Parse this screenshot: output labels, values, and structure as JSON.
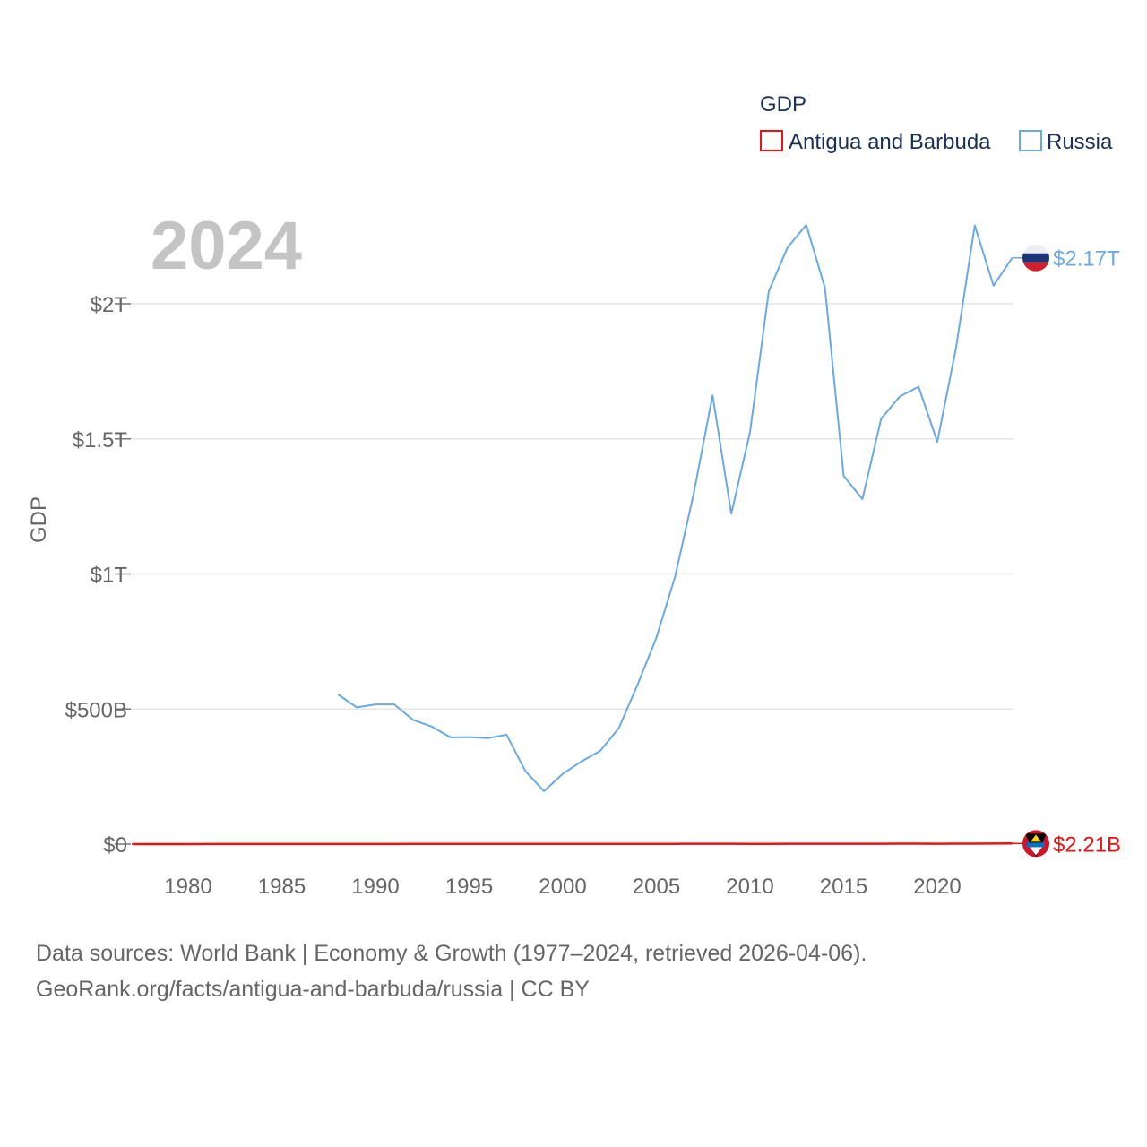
{
  "chart_data": {
    "type": "line",
    "title": "",
    "current_year": "2024",
    "ylabel": "GDP",
    "xlabel": "",
    "legend_title": "GDP",
    "xlim": [
      1977,
      2024
    ],
    "ylim": [
      0,
      2300000000000
    ],
    "x_ticks": [
      1980,
      1985,
      1990,
      1995,
      2000,
      2005,
      2010,
      2015,
      2020
    ],
    "x_tick_labels": [
      "1980",
      "1985",
      "1990",
      "1995",
      "2000",
      "2005",
      "2010",
      "2015",
      "2020"
    ],
    "y_ticks": [
      0,
      500000000000,
      1000000000000,
      1500000000000,
      2000000000000
    ],
    "y_tick_labels": [
      "$0",
      "$500B",
      "$1T",
      "$1.5T",
      "$2T"
    ],
    "series": [
      {
        "name": "Antigua and Barbuda",
        "color": "#ee1111",
        "end_label": "$2.21B",
        "flag": "antigua-and-barbuda-flag-icon",
        "x": [
          1977,
          1978,
          1979,
          1980,
          1981,
          1982,
          1983,
          1984,
          1985,
          1986,
          1987,
          1988,
          1989,
          1990,
          1991,
          1992,
          1993,
          1994,
          1995,
          1996,
          1997,
          1998,
          1999,
          2000,
          2001,
          2002,
          2003,
          2004,
          2005,
          2006,
          2007,
          2008,
          2009,
          2010,
          2011,
          2012,
          2013,
          2014,
          2015,
          2016,
          2017,
          2018,
          2019,
          2020,
          2021,
          2022,
          2023,
          2024
        ],
        "values": [
          100000000.0,
          120000000.0,
          140000000.0,
          160000000.0,
          180000000.0,
          200000000.0,
          220000000.0,
          250000000.0,
          280000000.0,
          320000000.0,
          360000000.0,
          400000000.0,
          440000000.0,
          460000000.0,
          480000000.0,
          500000000.0,
          520000000.0,
          560000000.0,
          580000000.0,
          600000000.0,
          640000000.0,
          680000000.0,
          720000000.0,
          830000000.0,
          800000000.0,
          810000000.0,
          850000000.0,
          910000000.0,
          1000000000.0,
          1130000000.0,
          1290000000.0,
          1350000000.0,
          1220000000.0,
          1150000000.0,
          1140000000.0,
          1200000000.0,
          1200000000.0,
          1250000000.0,
          1340000000.0,
          1440000000.0,
          1470000000.0,
          1600000000.0,
          1690000000.0,
          1410000000.0,
          1560000000.0,
          1760000000.0,
          2030000000.0,
          2210000000.0
        ]
      },
      {
        "name": "Russia",
        "color": "#6aaae4",
        "end_label": "$2.17T",
        "flag": "russia-flag-icon",
        "x": [
          1988,
          1989,
          1990,
          1991,
          1992,
          1993,
          1994,
          1995,
          1996,
          1997,
          1998,
          1999,
          2000,
          2001,
          2002,
          2003,
          2004,
          2005,
          2006,
          2007,
          2008,
          2009,
          2010,
          2011,
          2012,
          2013,
          2014,
          2015,
          2016,
          2017,
          2018,
          2019,
          2020,
          2021,
          2022,
          2023,
          2024
        ],
        "values": [
          554000000000.0,
          506000000000.0,
          517000000000.0,
          517000000000.0,
          460000000000.0,
          435000000000.0,
          395000000000.0,
          396000000000.0,
          392000000000.0,
          405000000000.0,
          271000000000.0,
          196000000000.0,
          260000000000.0,
          306000000000.0,
          345000000000.0,
          430000000000.0,
          591000000000.0,
          764000000000.0,
          990000000000.0,
          1300000000000.0,
          1661000000000.0,
          1223000000000.0,
          1525000000000.0,
          2046000000000.0,
          2208000000000.0,
          2292000000000.0,
          2059000000000.0,
          1363000000000.0,
          1277000000000.0,
          1574000000000.0,
          1657000000000.0,
          1693000000000.0,
          1489000000000.0,
          1837000000000.0,
          2290000000000.0,
          2067000000000.0,
          2170000000000.0
        ]
      }
    ]
  },
  "footer": {
    "line1": "Data sources: World Bank | Economy & Growth (1977–2024, retrieved 2026-04-06).",
    "line2": "GeoRank.org/facts/antigua-and-barbuda/russia | CC BY"
  }
}
